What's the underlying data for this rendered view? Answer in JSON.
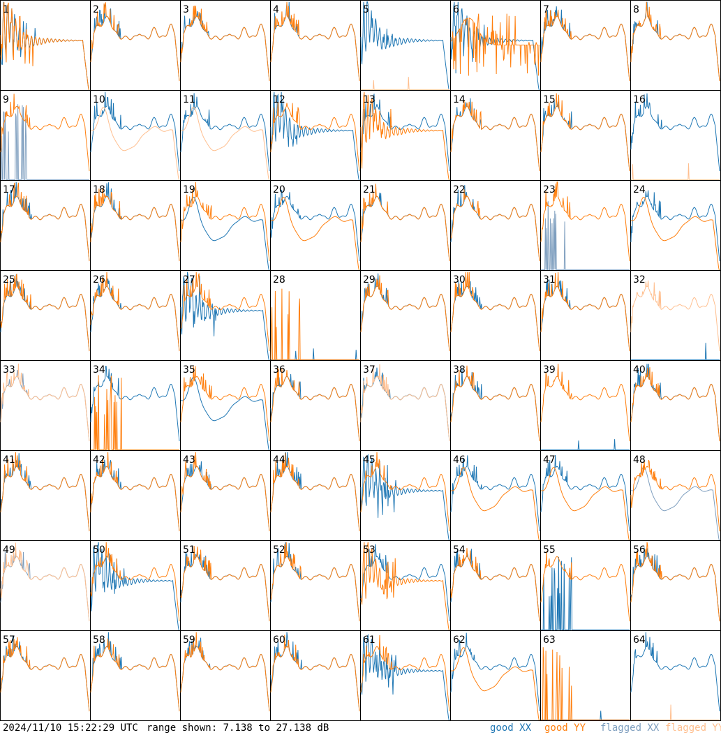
{
  "colors": {
    "good_xx": "#1f77b4",
    "good_yy": "#ff7f0e",
    "flagged_xx": "#7f9fbf",
    "flagged_yy": "#ffbf8f"
  },
  "footer": {
    "timestamp": "2024/11/10 15:22:29 UTC",
    "range": "range shown: 7.138 to 27.138 dB"
  },
  "legend": {
    "good_xx": "good XX",
    "good_yy": "good YY",
    "flagged_xx": "flagged XX",
    "flagged_yy": "flagged YY"
  },
  "chart_data": {
    "type": "line",
    "yrange_db": [
      7.138,
      27.138
    ],
    "grid": {
      "rows": 8,
      "cols": 8
    },
    "panels": [
      {
        "label": "1",
        "xx": "damped",
        "yy": "damped",
        "xx_flag": false,
        "yy_flag": false
      },
      {
        "label": "2",
        "xx": "normal",
        "yy": "normal",
        "xx_flag": false,
        "yy_flag": false
      },
      {
        "label": "3",
        "xx": "normal",
        "yy": "normal",
        "xx_flag": false,
        "yy_flag": false
      },
      {
        "label": "4",
        "xx": "normal",
        "yy": "normal",
        "xx_flag": false,
        "yy_flag": false
      },
      {
        "label": "5",
        "xx": "damped",
        "yy": "flat",
        "xx_flag": false,
        "yy_flag": true
      },
      {
        "label": "6",
        "xx": "damped",
        "yy": "spiky",
        "xx_flag": false,
        "yy_flag": false
      },
      {
        "label": "7",
        "xx": "normal",
        "yy": "normal",
        "xx_flag": false,
        "yy_flag": false
      },
      {
        "label": "8",
        "xx": "normal",
        "yy": "normal",
        "xx_flag": false,
        "yy_flag": false
      },
      {
        "label": "9",
        "xx": "spikes",
        "yy": "normal",
        "xx_flag": true,
        "yy_flag": false
      },
      {
        "label": "10",
        "xx": "normal",
        "yy": "dip",
        "xx_flag": false,
        "yy_flag": true
      },
      {
        "label": "11",
        "xx": "normal",
        "yy": "dip",
        "xx_flag": false,
        "yy_flag": true
      },
      {
        "label": "12",
        "xx": "damped",
        "yy": "normal",
        "xx_flag": false,
        "yy_flag": false
      },
      {
        "label": "13",
        "xx": "normal",
        "yy": "damped",
        "xx_flag": false,
        "yy_flag": false
      },
      {
        "label": "14",
        "xx": "normal",
        "yy": "normal",
        "xx_flag": false,
        "yy_flag": false
      },
      {
        "label": "15",
        "xx": "normal",
        "yy": "normal",
        "xx_flag": false,
        "yy_flag": false
      },
      {
        "label": "16",
        "xx": "normal",
        "yy": "flat",
        "xx_flag": false,
        "yy_flag": true
      },
      {
        "label": "17",
        "xx": "normal",
        "yy": "normal",
        "xx_flag": false,
        "yy_flag": false
      },
      {
        "label": "18",
        "xx": "normal",
        "yy": "normal",
        "xx_flag": false,
        "yy_flag": false
      },
      {
        "label": "19",
        "xx": "dip",
        "yy": "normal",
        "xx_flag": false,
        "yy_flag": false
      },
      {
        "label": "20",
        "xx": "normal",
        "yy": "dip",
        "xx_flag": false,
        "yy_flag": false
      },
      {
        "label": "21",
        "xx": "normal",
        "yy": "normal",
        "xx_flag": false,
        "yy_flag": false
      },
      {
        "label": "22",
        "xx": "normal",
        "yy": "normal",
        "xx_flag": false,
        "yy_flag": false
      },
      {
        "label": "23",
        "xx": "spikes",
        "yy": "normal",
        "xx_flag": true,
        "yy_flag": false
      },
      {
        "label": "24",
        "xx": "normal",
        "yy": "dip",
        "xx_flag": false,
        "yy_flag": false
      },
      {
        "label": "25",
        "xx": "normal",
        "yy": "normal",
        "xx_flag": false,
        "yy_flag": false
      },
      {
        "label": "26",
        "xx": "normal",
        "yy": "normal",
        "xx_flag": false,
        "yy_flag": false
      },
      {
        "label": "27",
        "xx": "damped",
        "yy": "normal",
        "xx_flag": false,
        "yy_flag": false
      },
      {
        "label": "28",
        "xx": "flat",
        "yy": "spikes",
        "xx_flag": false,
        "yy_flag": false
      },
      {
        "label": "29",
        "xx": "normal",
        "yy": "normal",
        "xx_flag": false,
        "yy_flag": false
      },
      {
        "label": "30",
        "xx": "normal",
        "yy": "normal",
        "xx_flag": false,
        "yy_flag": false
      },
      {
        "label": "31",
        "xx": "normal",
        "yy": "normal",
        "xx_flag": false,
        "yy_flag": false
      },
      {
        "label": "32",
        "xx": "flat",
        "yy": "normal",
        "xx_flag": false,
        "yy_flag": true
      },
      {
        "label": "33",
        "xx": "normal",
        "yy": "normal",
        "xx_flag": true,
        "yy_flag": true
      },
      {
        "label": "34",
        "xx": "normal",
        "yy": "spikes",
        "xx_flag": false,
        "yy_flag": false
      },
      {
        "label": "35",
        "xx": "dip",
        "yy": "normal",
        "xx_flag": false,
        "yy_flag": false
      },
      {
        "label": "36",
        "xx": "normal",
        "yy": "normal",
        "xx_flag": false,
        "yy_flag": false
      },
      {
        "label": "37",
        "xx": "normal",
        "yy": "normal",
        "xx_flag": false,
        "yy_flag": true
      },
      {
        "label": "38",
        "xx": "normal",
        "yy": "normal",
        "xx_flag": false,
        "yy_flag": false
      },
      {
        "label": "39",
        "xx": "flat",
        "yy": "normal",
        "xx_flag": false,
        "yy_flag": false
      },
      {
        "label": "40",
        "xx": "normal",
        "yy": "normal",
        "xx_flag": false,
        "yy_flag": false
      },
      {
        "label": "41",
        "xx": "normal",
        "yy": "normal",
        "xx_flag": false,
        "yy_flag": false
      },
      {
        "label": "42",
        "xx": "normal",
        "yy": "normal",
        "xx_flag": false,
        "yy_flag": false
      },
      {
        "label": "43",
        "xx": "normal",
        "yy": "normal",
        "xx_flag": false,
        "yy_flag": false
      },
      {
        "label": "44",
        "xx": "normal",
        "yy": "normal",
        "xx_flag": false,
        "yy_flag": false
      },
      {
        "label": "45",
        "xx": "damped",
        "yy": "normal",
        "xx_flag": false,
        "yy_flag": false
      },
      {
        "label": "46",
        "xx": "normal",
        "yy": "dip",
        "xx_flag": false,
        "yy_flag": false
      },
      {
        "label": "47",
        "xx": "normal",
        "yy": "dip",
        "xx_flag": false,
        "yy_flag": false
      },
      {
        "label": "48",
        "xx": "dip",
        "yy": "normal",
        "xx_flag": true,
        "yy_flag": false
      },
      {
        "label": "49",
        "xx": "normal",
        "yy": "normal",
        "xx_flag": true,
        "yy_flag": true
      },
      {
        "label": "50",
        "xx": "damped",
        "yy": "normal",
        "xx_flag": false,
        "yy_flag": false
      },
      {
        "label": "51",
        "xx": "normal",
        "yy": "normal",
        "xx_flag": false,
        "yy_flag": false
      },
      {
        "label": "52",
        "xx": "normal",
        "yy": "normal",
        "xx_flag": false,
        "yy_flag": false
      },
      {
        "label": "53",
        "xx": "normal",
        "yy": "damped",
        "xx_flag": false,
        "yy_flag": false
      },
      {
        "label": "54",
        "xx": "normal",
        "yy": "normal",
        "xx_flag": false,
        "yy_flag": false
      },
      {
        "label": "55",
        "xx": "spikes",
        "yy": "normal",
        "xx_flag": false,
        "yy_flag": false
      },
      {
        "label": "56",
        "xx": "normal",
        "yy": "normal",
        "xx_flag": false,
        "yy_flag": false
      },
      {
        "label": "57",
        "xx": "normal",
        "yy": "normal",
        "xx_flag": false,
        "yy_flag": false
      },
      {
        "label": "58",
        "xx": "normal",
        "yy": "normal",
        "xx_flag": false,
        "yy_flag": false
      },
      {
        "label": "59",
        "xx": "normal",
        "yy": "normal",
        "xx_flag": false,
        "yy_flag": false
      },
      {
        "label": "60",
        "xx": "normal",
        "yy": "normal",
        "xx_flag": false,
        "yy_flag": false
      },
      {
        "label": "61",
        "xx": "damped",
        "yy": "normal",
        "xx_flag": false,
        "yy_flag": false
      },
      {
        "label": "62",
        "xx": "normal",
        "yy": "dip",
        "xx_flag": false,
        "yy_flag": false
      },
      {
        "label": "63",
        "xx": "flat",
        "yy": "spikes",
        "xx_flag": false,
        "yy_flag": false
      },
      {
        "label": "64",
        "xx": "normal",
        "yy": "flat",
        "xx_flag": false,
        "yy_flag": true
      }
    ]
  }
}
